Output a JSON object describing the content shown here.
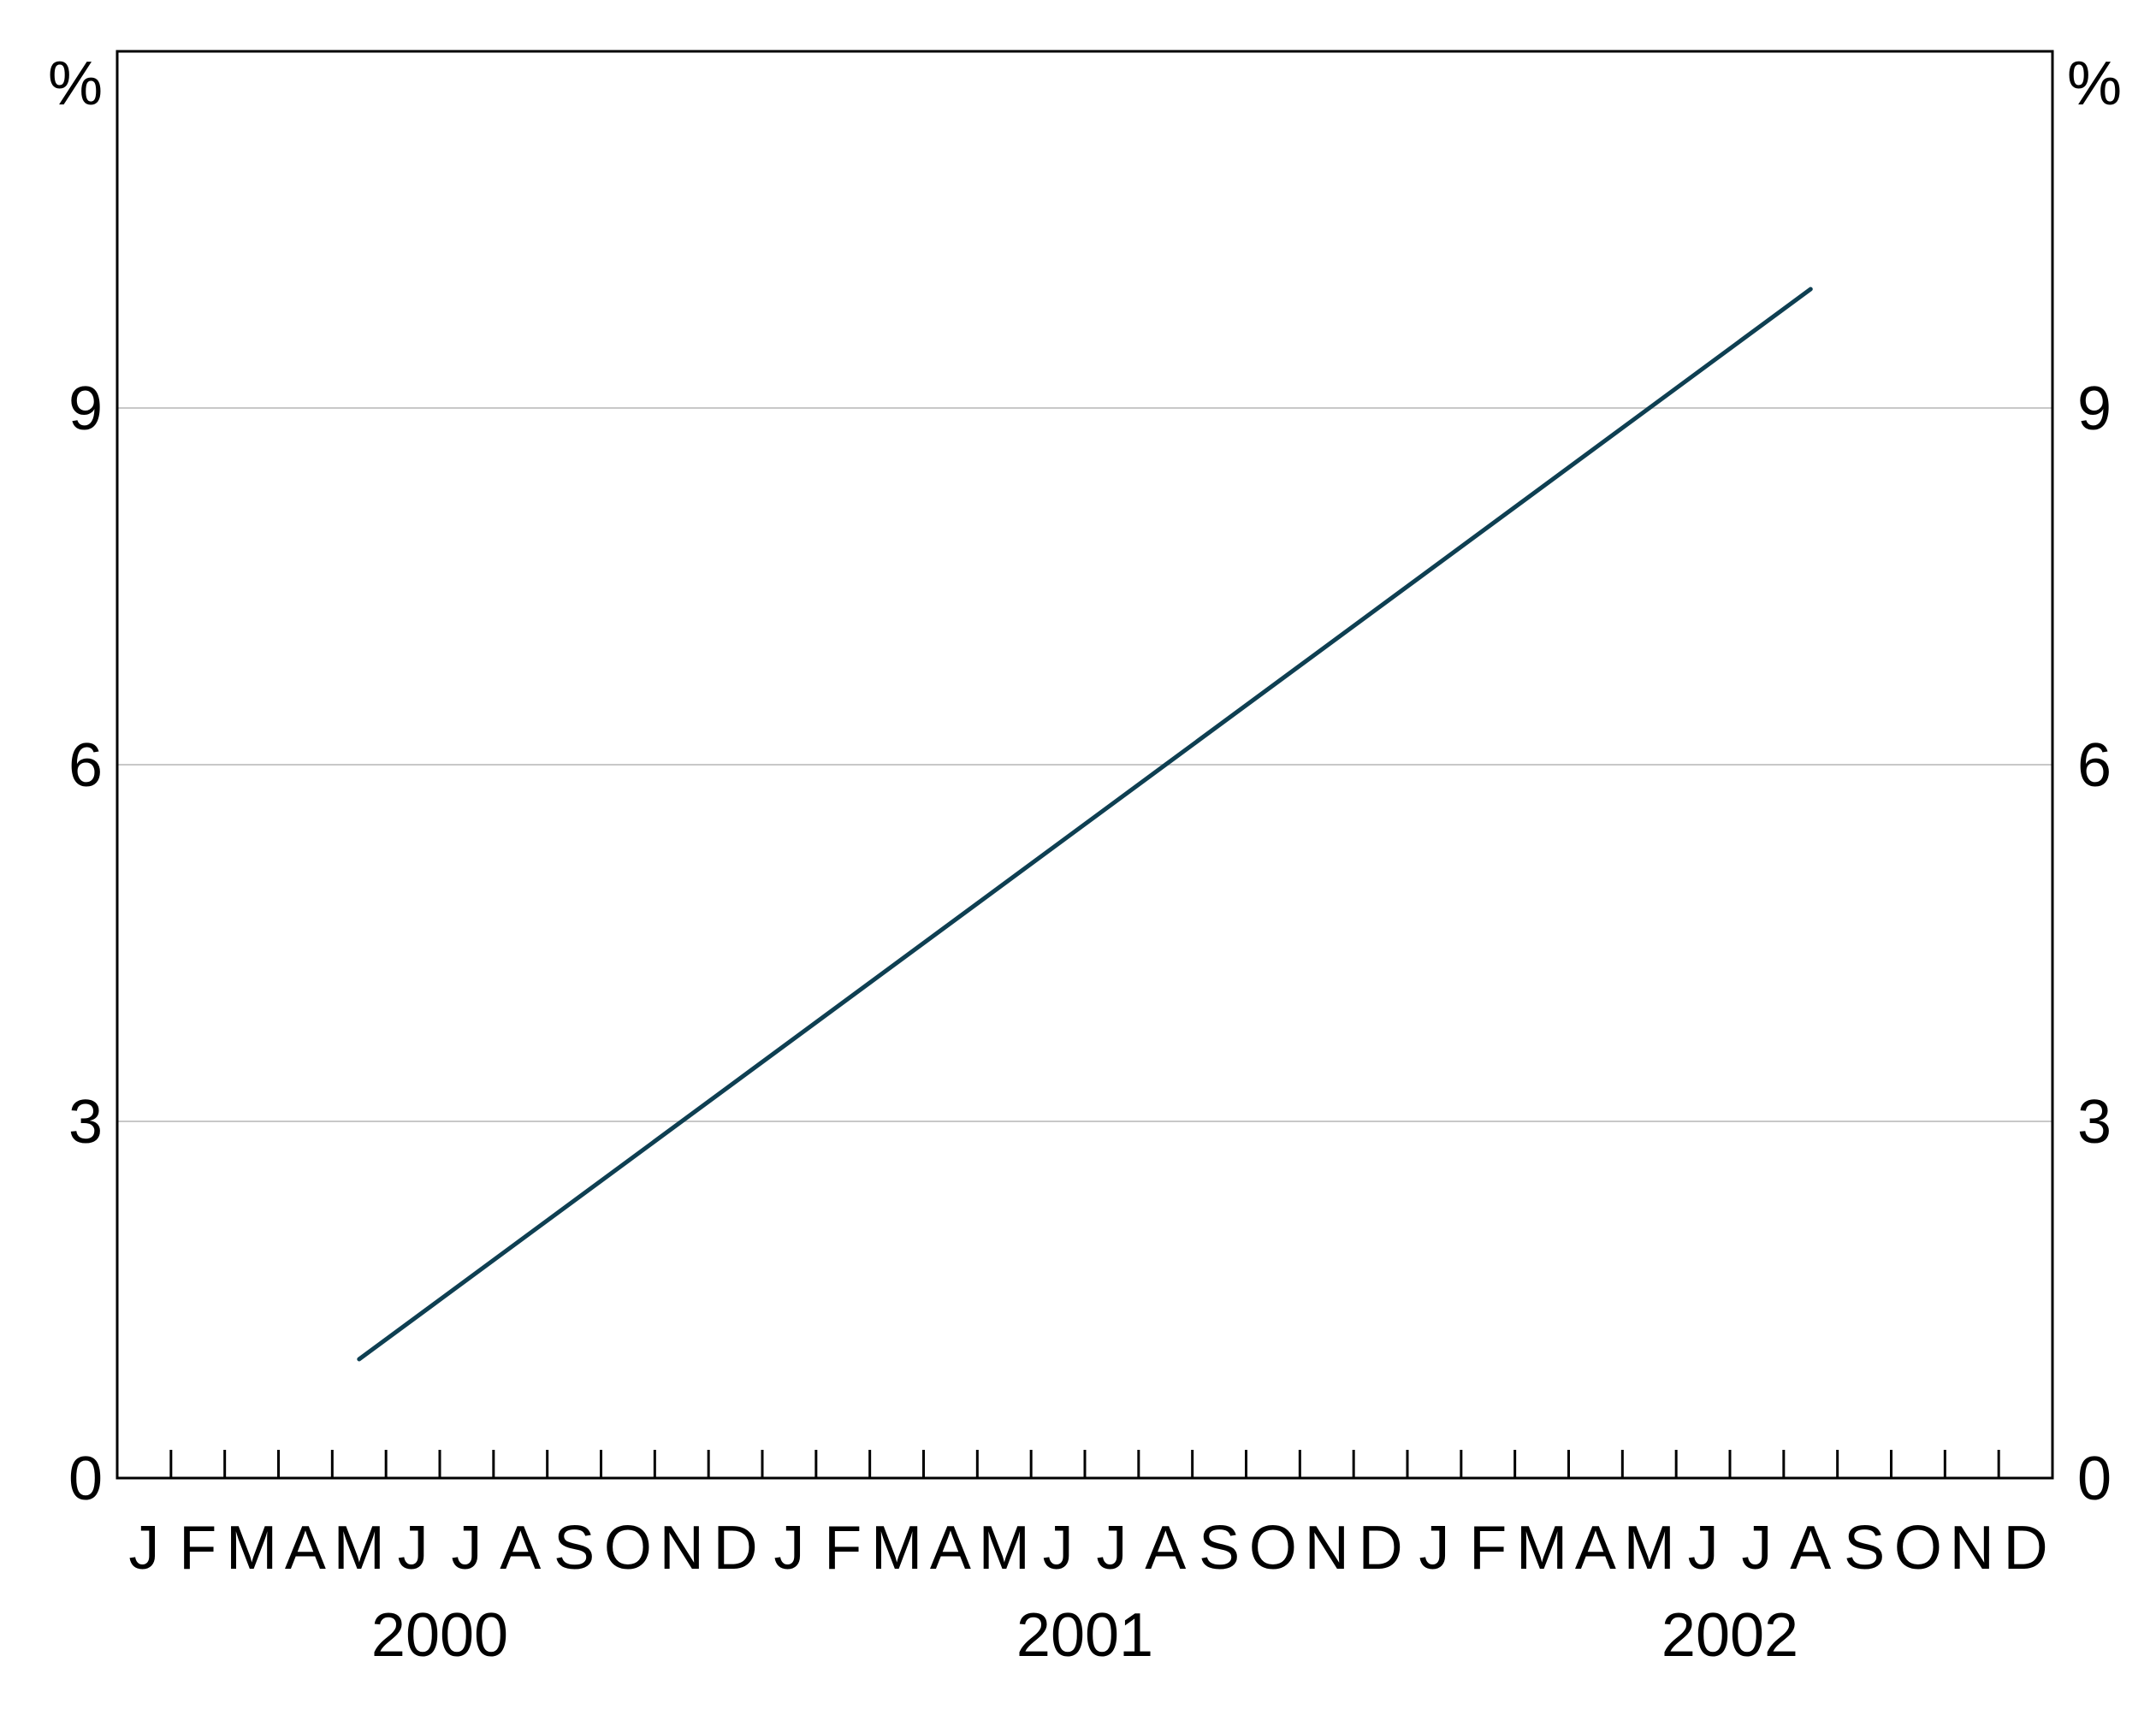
{
  "chart_data": {
    "type": "line",
    "title": "",
    "xlabel": "",
    "ylabel": "%",
    "ylabel_right": "%",
    "ylim": [
      0,
      12
    ],
    "yticks": [
      0,
      3,
      6,
      9
    ],
    "grid": "horizontal",
    "x_range": [
      "2000-01",
      "2002-12"
    ],
    "month_labels": [
      "J",
      "F",
      "M",
      "A",
      "M",
      "J",
      "J",
      "A",
      "S",
      "O",
      "N",
      "D"
    ],
    "years": [
      "2000",
      "2001",
      "2002"
    ],
    "series": [
      {
        "color": "#0e3f52",
        "points": [
          {
            "x": "2000-05",
            "y": 1.0
          },
          {
            "x": "2002-08",
            "y": 10.0
          }
        ]
      }
    ]
  }
}
